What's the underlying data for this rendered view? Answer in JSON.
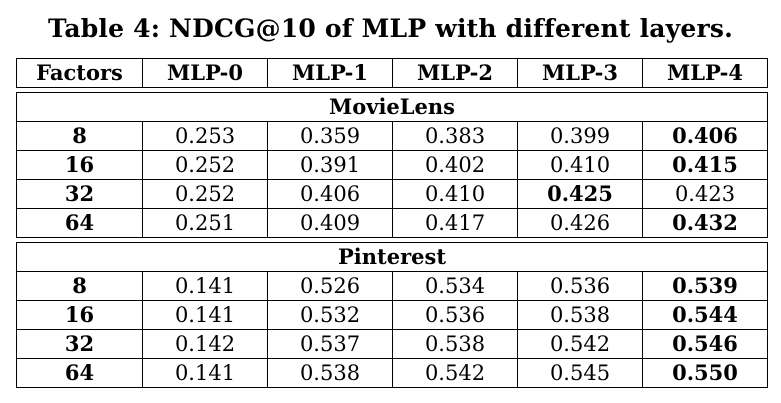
{
  "caption": "Table 4: NDCG@10 of MLP with different layers.",
  "table": {
    "headers": [
      "Factors",
      "MLP-0",
      "MLP-1",
      "MLP-2",
      "MLP-3",
      "MLP-4"
    ],
    "sections": [
      {
        "title": "MovieLens",
        "rows": [
          {
            "factor": "8",
            "values": [
              "0.253",
              "0.359",
              "0.383",
              "0.399",
              "0.406"
            ],
            "best": 4
          },
          {
            "factor": "16",
            "values": [
              "0.252",
              "0.391",
              "0.402",
              "0.410",
              "0.415"
            ],
            "best": 4
          },
          {
            "factor": "32",
            "values": [
              "0.252",
              "0.406",
              "0.410",
              "0.425",
              "0.423"
            ],
            "best": 3
          },
          {
            "factor": "64",
            "values": [
              "0.251",
              "0.409",
              "0.417",
              "0.426",
              "0.432"
            ],
            "best": 4
          }
        ]
      },
      {
        "title": "Pinterest",
        "rows": [
          {
            "factor": "8",
            "values": [
              "0.141",
              "0.526",
              "0.534",
              "0.536",
              "0.539"
            ],
            "best": 4
          },
          {
            "factor": "16",
            "values": [
              "0.141",
              "0.532",
              "0.536",
              "0.538",
              "0.544"
            ],
            "best": 4
          },
          {
            "factor": "32",
            "values": [
              "0.142",
              "0.537",
              "0.538",
              "0.542",
              "0.546"
            ],
            "best": 4
          },
          {
            "factor": "64",
            "values": [
              "0.141",
              "0.538",
              "0.542",
              "0.545",
              "0.550"
            ],
            "best": 4
          }
        ]
      }
    ]
  }
}
